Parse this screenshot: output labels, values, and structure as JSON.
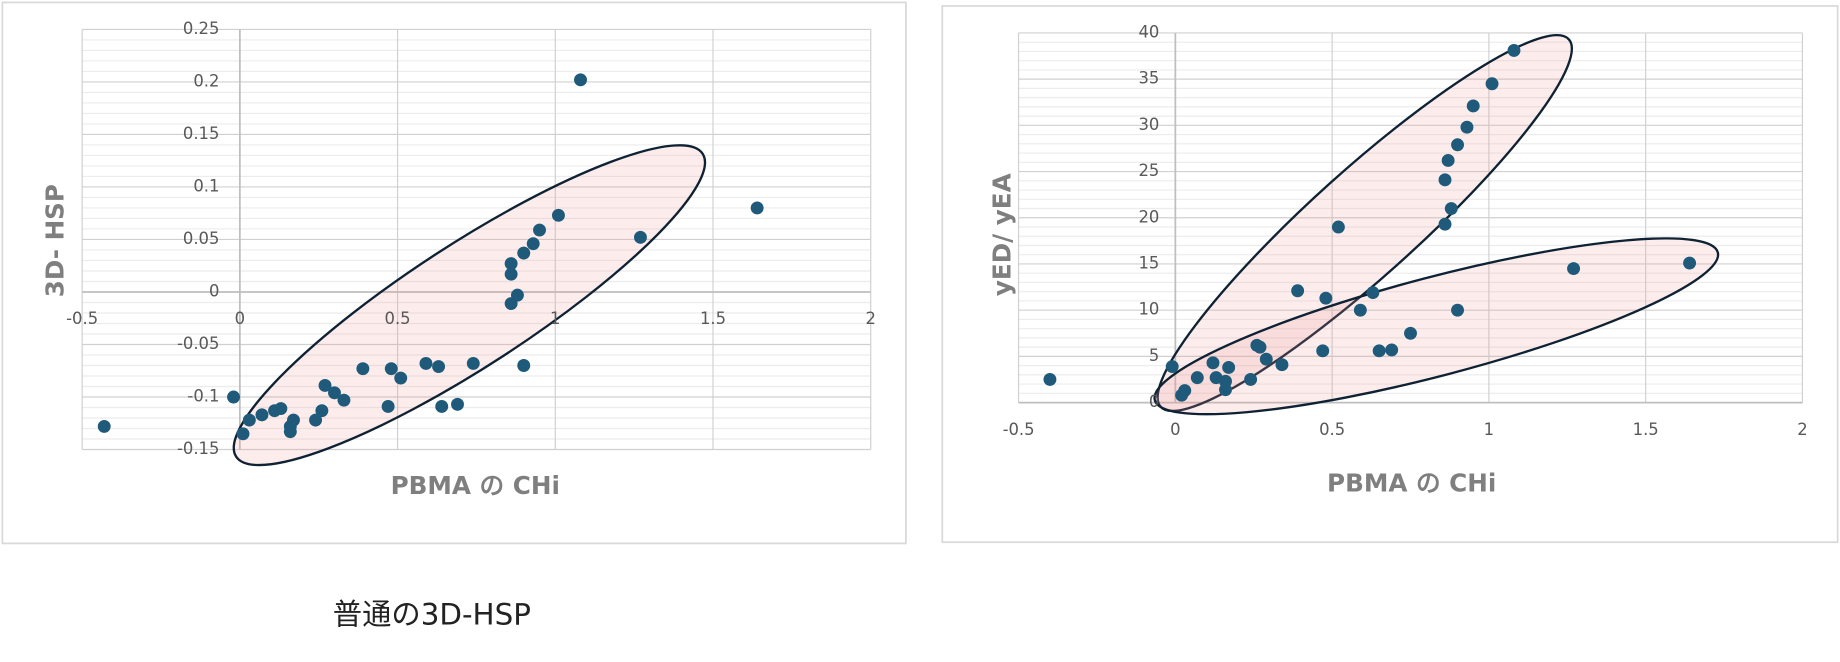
{
  "chart_data": [
    {
      "type": "scatter",
      "y_label": "3D- HSP",
      "x_label": "PBMA の CHi",
      "color": "#1f5a7a",
      "xlim": [
        -0.5,
        2
      ],
      "xticks": [
        -0.5,
        0,
        0.5,
        1,
        1.5,
        2
      ],
      "ylim": [
        -0.15,
        0.25
      ],
      "yticks": [
        -0.15,
        -0.1,
        -0.05,
        0,
        0.05,
        0.1,
        0.15,
        0.2,
        0.25
      ],
      "grid": true,
      "x": [
        -0.43,
        -0.02,
        0.01,
        0.03,
        0.07,
        0.11,
        0.13,
        0.16,
        0.16,
        0.17,
        0.24,
        0.26,
        0.27,
        0.3,
        0.33,
        0.39,
        0.47,
        0.48,
        0.51,
        0.59,
        0.63,
        0.64,
        0.69,
        0.74,
        0.86,
        0.86,
        0.86,
        0.88,
        0.9,
        0.9,
        0.93,
        0.95,
        1.01,
        1.08,
        1.27,
        1.64
      ],
      "values": [
        -0.128,
        -0.1,
        -0.135,
        -0.122,
        -0.117,
        -0.113,
        -0.111,
        -0.128,
        -0.133,
        -0.122,
        -0.122,
        -0.113,
        -0.089,
        -0.096,
        -0.103,
        -0.073,
        -0.109,
        -0.073,
        -0.082,
        -0.068,
        -0.071,
        -0.109,
        -0.107,
        -0.068,
        -0.011,
        0.017,
        0.027,
        -0.003,
        0.037,
        -0.07,
        0.046,
        0.059,
        0.073,
        0.202,
        0.052,
        0.08
      ]
    },
    {
      "type": "scatter",
      "y_label": "yED/ yEA",
      "x_label": "PBMA の CHi",
      "color": "#1f5a7a",
      "xlim": [
        -0.5,
        2
      ],
      "xticks": [
        -0.5,
        0,
        0.5,
        1,
        1.5,
        2
      ],
      "ylim": [
        0,
        40
      ],
      "yticks": [
        0,
        5,
        10,
        15,
        20,
        25,
        30,
        35,
        40
      ],
      "grid": true,
      "x": [
        -0.4,
        -0.01,
        0.02,
        0.03,
        0.07,
        0.12,
        0.13,
        0.16,
        0.16,
        0.17,
        0.24,
        0.26,
        0.27,
        0.29,
        0.34,
        0.39,
        0.47,
        0.48,
        0.52,
        0.59,
        0.63,
        0.65,
        0.69,
        0.75,
        0.86,
        0.86,
        0.87,
        0.88,
        0.9,
        0.9,
        0.93,
        0.95,
        1.01,
        1.08,
        1.27,
        1.64
      ],
      "values": [
        2.5,
        3.9,
        0.8,
        1.3,
        2.7,
        4.3,
        2.7,
        2.3,
        1.4,
        3.8,
        2.5,
        6.2,
        6.0,
        4.7,
        4.1,
        12.1,
        5.6,
        11.3,
        19.0,
        10.0,
        11.9,
        5.6,
        5.7,
        7.5,
        19.3,
        24.1,
        26.2,
        21.0,
        10.0,
        27.9,
        29.8,
        32.1,
        34.5,
        38.1,
        14.5,
        15.1
      ]
    }
  ],
  "caption": "普通の3D-HSP"
}
